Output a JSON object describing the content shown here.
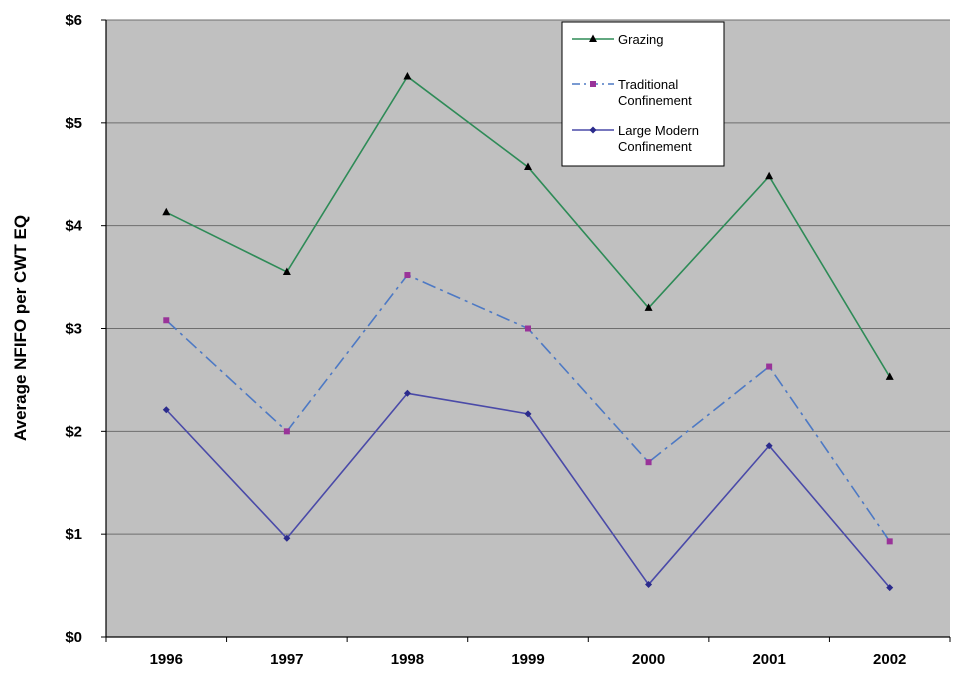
{
  "chart_data": {
    "type": "line",
    "title": "",
    "xlabel": "",
    "ylabel": "Average NFIFO per CWT EQ",
    "categories": [
      "1996",
      "1997",
      "1998",
      "1999",
      "2000",
      "2001",
      "2002"
    ],
    "y_ticks": [
      "$0",
      "$1",
      "$2",
      "$3",
      "$4",
      "$5",
      "$6"
    ],
    "ylim": [
      0,
      6
    ],
    "grid": true,
    "legend_position": "top-right",
    "plot_background": "#c0c0c0",
    "series": [
      {
        "name": "Grazing",
        "legend_lines": [
          "Grazing"
        ],
        "values": [
          4.13,
          3.55,
          5.45,
          4.57,
          3.2,
          4.48,
          2.53
        ],
        "color": "#2e8b57",
        "dash": "solid",
        "marker": "triangle",
        "marker_color": "#000000"
      },
      {
        "name": "Traditional Confinement",
        "legend_lines": [
          "Traditional",
          "Confinement"
        ],
        "values": [
          3.08,
          2.0,
          3.52,
          3.0,
          1.7,
          2.63,
          0.93
        ],
        "color": "#4d79c4",
        "dash": "dashdot",
        "marker": "square",
        "marker_color": "#993399"
      },
      {
        "name": "Large Modern Confinement",
        "legend_lines": [
          "Large Modern",
          "Confinement"
        ],
        "values": [
          2.21,
          0.96,
          2.37,
          2.17,
          0.51,
          1.86,
          0.48
        ],
        "color": "#4a4aa8",
        "dash": "solid",
        "marker": "diamond",
        "marker_color": "#2b2b8c"
      }
    ]
  }
}
